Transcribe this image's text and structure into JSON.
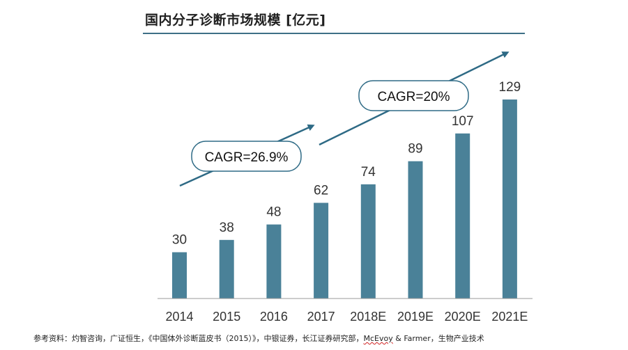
{
  "header": {
    "title": "国内分子诊断市场规模 [亿元]"
  },
  "chart_data": {
    "type": "bar",
    "title": "国内分子诊断市场规模 [亿元]",
    "categories": [
      "2014",
      "2015",
      "2016",
      "2017",
      "2018E",
      "2019E",
      "2020E",
      "2021E"
    ],
    "values": [
      30,
      38,
      48,
      62,
      74,
      89,
      107,
      129
    ],
    "ylim": [
      0,
      129
    ],
    "grid": false,
    "bar_color": "#4a8198",
    "annotations": [
      {
        "text": "CAGR=26.9%",
        "from": "2014",
        "to": "2017"
      },
      {
        "text": "CAGR=20%",
        "from": "2018E",
        "to": "2021E"
      }
    ]
  },
  "footer": {
    "source_prefix": "参考资料：灼智咨询，广证恒生，《中国体外诊断蓝皮书（2015）》，中银证券，长江证券研究部，",
    "source_underlined": "McEvoy",
    "source_suffix": " & Farmer，生物产业技术"
  },
  "colors": {
    "bar": "#4a8198",
    "arrow": "#2e6a85",
    "rule": "#3e6f86",
    "text": "#333333"
  }
}
